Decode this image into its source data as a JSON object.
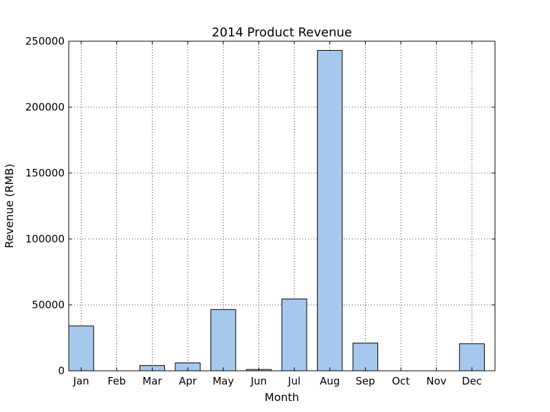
{
  "chart_data": {
    "type": "bar",
    "title": "2014 Product Revenue",
    "xlabel": "Month",
    "ylabel": "Revenue (RMB)",
    "categories": [
      "Jan",
      "Feb",
      "Mar",
      "Apr",
      "May",
      "Jun",
      "Jul",
      "Aug",
      "Sep",
      "Oct",
      "Nov",
      "Dec"
    ],
    "values": [
      34000,
      0,
      4000,
      6000,
      46500,
      1000,
      54500,
      243000,
      21000,
      0,
      0,
      20500
    ],
    "ylim": [
      0,
      250000
    ],
    "yticks": [
      0,
      50000,
      100000,
      150000,
      200000,
      250000
    ],
    "ytick_labels": [
      "0",
      "50000",
      "100000",
      "150000",
      "200000",
      "250000"
    ],
    "grid": true,
    "bar_color": "#a5c8ec",
    "edge_color": "#000000"
  }
}
